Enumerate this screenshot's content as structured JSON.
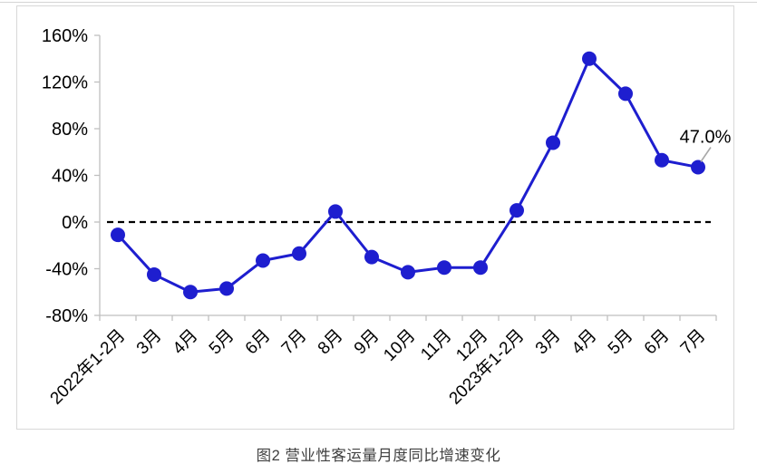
{
  "caption": "图2  营业性客运量月度同比增速变化",
  "chart_data": {
    "type": "line",
    "title": "图2  营业性客运量月度同比增速变化",
    "categories": [
      "2022年1-2月",
      "3月",
      "4月",
      "5月",
      "6月",
      "7月",
      "8月",
      "9月",
      "10月",
      "11月",
      "12月",
      "2023年1-2月",
      "3月",
      "4月",
      "5月",
      "6月",
      "7月"
    ],
    "series": [
      {
        "name": "营业性客运量月度同比增速",
        "values": [
          -11,
          -45,
          -60,
          -57,
          -33,
          -27,
          9,
          -30,
          -43,
          -39,
          -39,
          10,
          68,
          140,
          110,
          53,
          47
        ]
      }
    ],
    "ytick_labels": [
      "160%",
      "120%",
      "80%",
      "40%",
      "0%",
      "-40%",
      "-80%"
    ],
    "yticks": [
      160,
      120,
      80,
      40,
      0,
      -40,
      -80
    ],
    "ylim": [
      -80,
      160
    ],
    "xlabel": "",
    "ylabel": "",
    "grid": false,
    "legend": false,
    "zero_line_style": "dashed",
    "annotation": {
      "text": "47.0%",
      "point_index": 16
    },
    "colors": {
      "line": "#1E1ECF",
      "marker": "#1E1ECF",
      "zero_line": "#000000",
      "axis": "#BFBFBF",
      "text": "#000000",
      "leader": "#A8A8A8"
    }
  }
}
